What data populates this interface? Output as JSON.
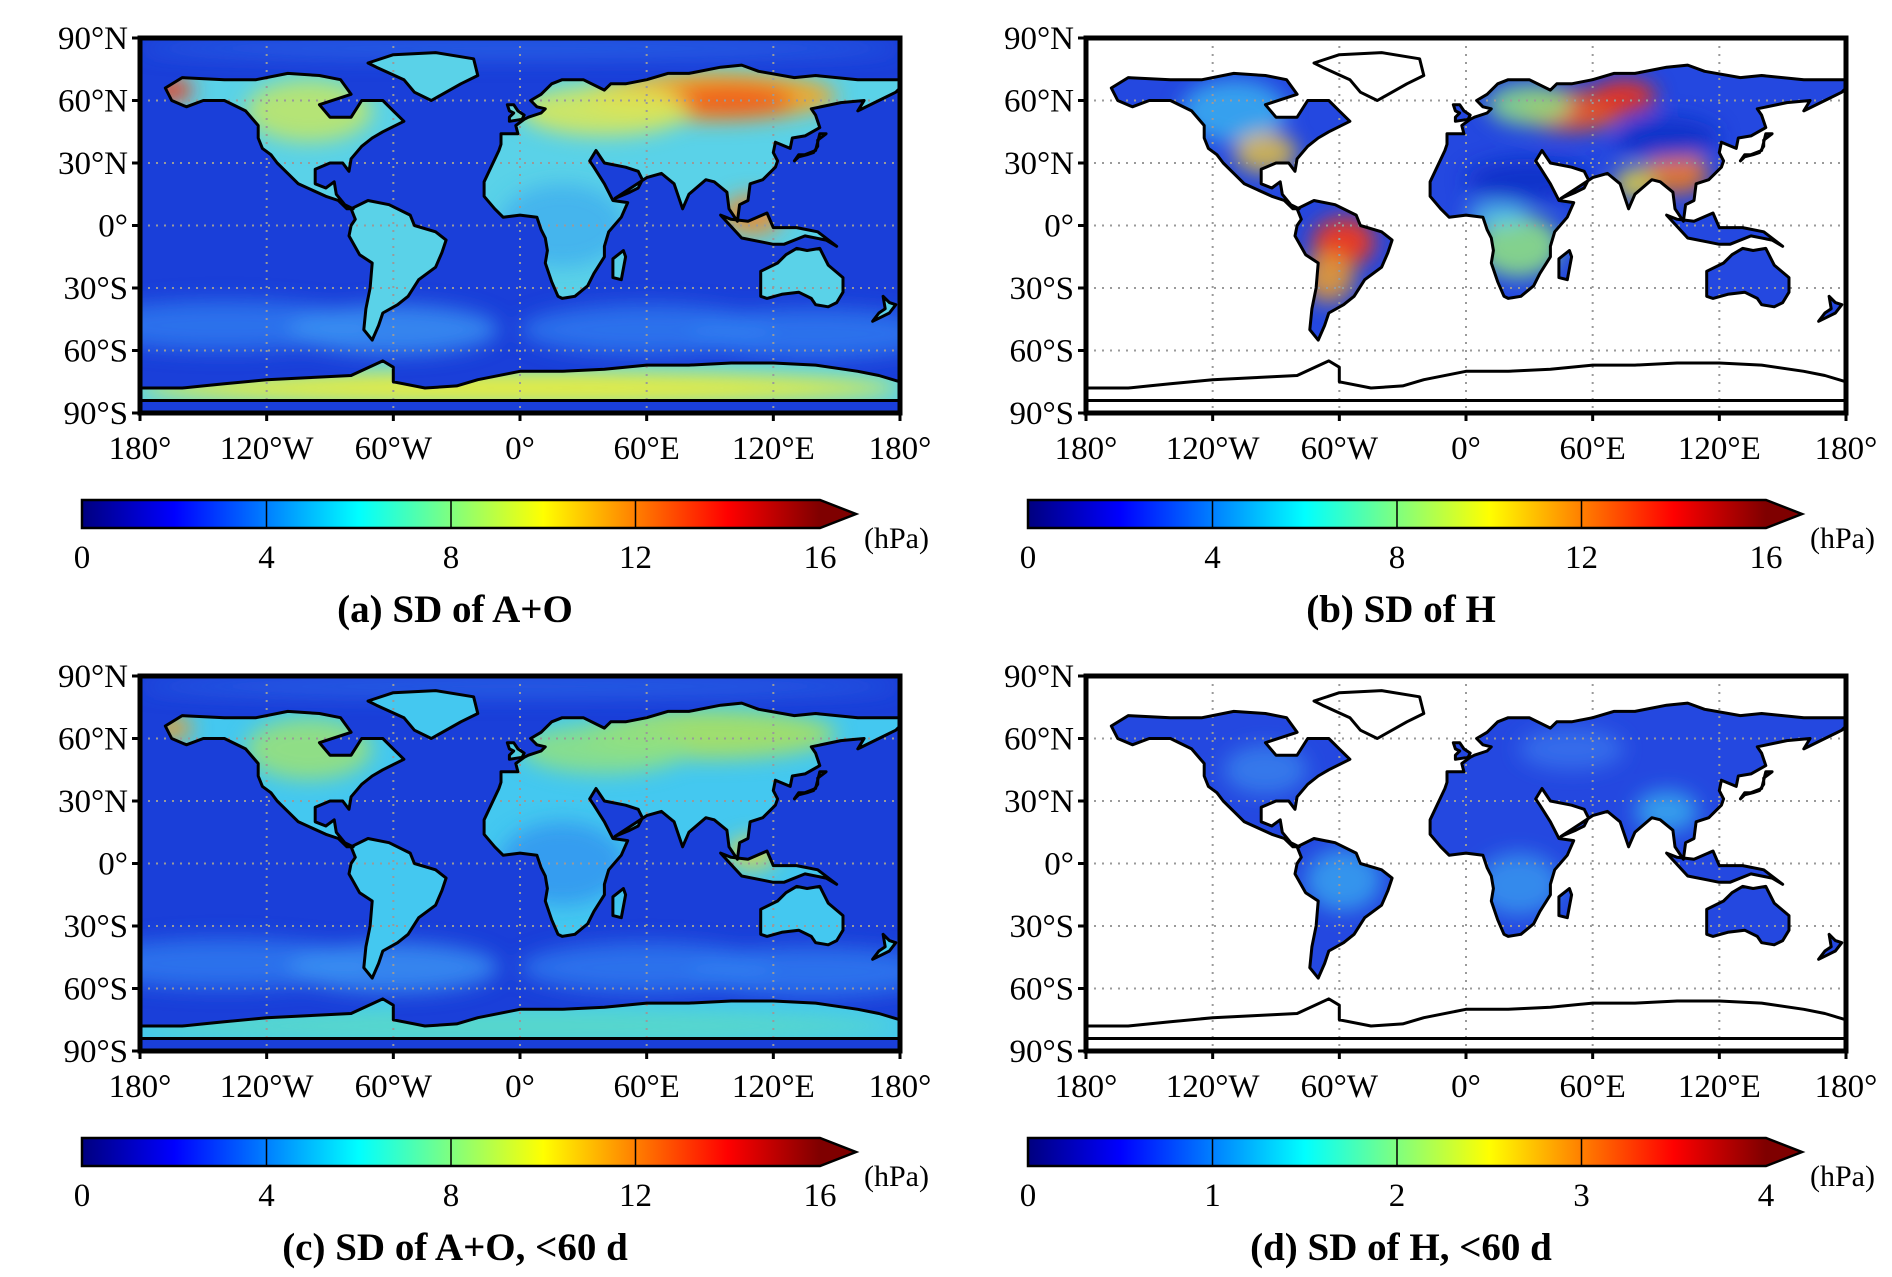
{
  "chart_data": [
    {
      "type": "heatmap",
      "title": "(a) SD of A+O",
      "basemap": "ocean",
      "lat_ticks": [
        "90°N",
        "60°N",
        "30°N",
        "0°",
        "30°S",
        "60°S",
        "90°S"
      ],
      "lon_ticks": [
        "180°",
        "120°W",
        "60°W",
        "0°",
        "60°E",
        "120°E",
        "180°"
      ],
      "colorbar": {
        "ticks": [
          "0",
          "4",
          "8",
          "12",
          "16"
        ],
        "range": [
          0,
          16
        ],
        "unit": "(hPa)",
        "extend": "max"
      }
    },
    {
      "type": "heatmap",
      "title": "(b) SD of H",
      "basemap": "land",
      "lat_ticks": [
        "90°N",
        "60°N",
        "30°N",
        "0°",
        "30°S",
        "60°S",
        "90°S"
      ],
      "lon_ticks": [
        "180°",
        "120°W",
        "60°W",
        "0°",
        "60°E",
        "120°E",
        "180°"
      ],
      "colorbar": {
        "ticks": [
          "0",
          "4",
          "8",
          "12",
          "16"
        ],
        "range": [
          0,
          16
        ],
        "unit": "(hPa)",
        "extend": "max"
      }
    },
    {
      "type": "heatmap",
      "title": "(c) SD of A+O, <60 d",
      "basemap": "ocean",
      "lat_ticks": [
        "90°N",
        "60°N",
        "30°N",
        "0°",
        "30°S",
        "60°S",
        "90°S"
      ],
      "lon_ticks": [
        "180°",
        "120°W",
        "60°W",
        "0°",
        "60°E",
        "120°E",
        "180°"
      ],
      "colorbar": {
        "ticks": [
          "0",
          "4",
          "8",
          "12",
          "16"
        ],
        "range": [
          0,
          16
        ],
        "unit": "(hPa)",
        "extend": "max"
      }
    },
    {
      "type": "heatmap",
      "title": "(d) SD of H, <60 d",
      "basemap": "land",
      "lat_ticks": [
        "90°N",
        "60°N",
        "30°N",
        "0°",
        "30°S",
        "60°S",
        "90°S"
      ],
      "lon_ticks": [
        "180°",
        "120°W",
        "60°W",
        "0°",
        "60°E",
        "120°E",
        "180°"
      ],
      "colorbar": {
        "ticks": [
          "0",
          "1",
          "2",
          "3",
          "4"
        ],
        "range": [
          0,
          4
        ],
        "unit": "(hPa)",
        "extend": "max"
      }
    }
  ],
  "colors": {
    "jet": [
      "#00007f",
      "#0000ff",
      "#007fff",
      "#00ffff",
      "#7fff7f",
      "#ffff00",
      "#ff7f00",
      "#ff0000",
      "#7f0000"
    ],
    "ocean_fill": "#1a3fd9",
    "land_fill": "#2448e0",
    "coast": "#000000",
    "grid": "#9a9a9a"
  }
}
